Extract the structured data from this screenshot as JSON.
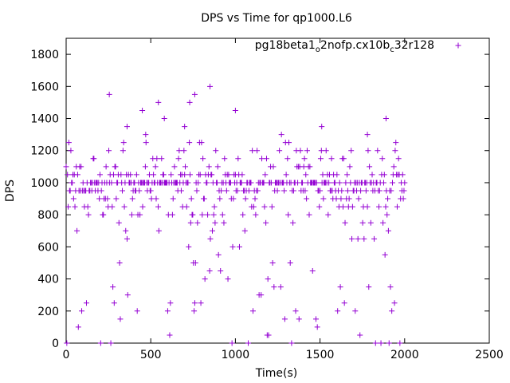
{
  "chart_data": {
    "type": "scatter",
    "title": "DPS vs Time for qp1000.L6",
    "xlabel": "Time(s)",
    "ylabel": "DPS",
    "xlim": [
      0,
      2500
    ],
    "ylim": [
      0,
      1900
    ],
    "xticks": [
      0,
      500,
      1000,
      1500,
      2000,
      2500
    ],
    "yticks": [
      0,
      200,
      400,
      600,
      800,
      1000,
      1200,
      1400,
      1600,
      1800
    ],
    "grid": false,
    "legend_position": "top-right",
    "legend_label_parts": [
      "pg18beta1",
      "o",
      "2nofp.cx10b",
      "c",
      "32r128"
    ],
    "marker": "plus",
    "color": "#9400d3",
    "series": [
      {
        "name": "pg18beta1_o2nofp.cx10b_c32r128",
        "generator": {
          "seed": 1000,
          "x_start": 0,
          "x_end": 2000,
          "x_step": 4,
          "levels": [
            {
              "y": 1000,
              "weight": 0.32
            },
            {
              "y": 950,
              "weight": 0.15
            },
            {
              "y": 1050,
              "weight": 0.1
            },
            {
              "y": 900,
              "weight": 0.07
            },
            {
              "y": 1100,
              "weight": 0.06
            },
            {
              "y": 850,
              "weight": 0.05
            },
            {
              "y": 1150,
              "weight": 0.04
            },
            {
              "y": 800,
              "weight": 0.04
            },
            {
              "y": 1200,
              "weight": 0.03
            },
            {
              "y": 750,
              "weight": 0.02
            },
            {
              "y": 1250,
              "weight": 0.02
            },
            {
              "y": 700,
              "weight": 0.015
            },
            {
              "y": 650,
              "weight": 0.015
            },
            {
              "y": 600,
              "weight": 0.01
            },
            {
              "y": 550,
              "weight": 0.01
            },
            {
              "y": 500,
              "weight": 0.01
            },
            {
              "y": 450,
              "weight": 0.01
            },
            {
              "y": 400,
              "weight": 0.01
            },
            {
              "y": 350,
              "weight": 0.008
            },
            {
              "y": 300,
              "weight": 0.008
            },
            {
              "y": 250,
              "weight": 0.008
            },
            {
              "y": 200,
              "weight": 0.008
            },
            {
              "y": 150,
              "weight": 0.008
            },
            {
              "y": 100,
              "weight": 0.006
            },
            {
              "y": 50,
              "weight": 0.006
            },
            {
              "y": 0,
              "weight": 0.012
            },
            {
              "y": 1300,
              "weight": 0.006
            },
            {
              "y": 1350,
              "weight": 0.004
            }
          ]
        },
        "outliers": [
          {
            "x": 255,
            "y": 1550
          },
          {
            "x": 545,
            "y": 1500
          },
          {
            "x": 580,
            "y": 1400
          },
          {
            "x": 760,
            "y": 1550
          },
          {
            "x": 730,
            "y": 1500
          },
          {
            "x": 850,
            "y": 1600
          },
          {
            "x": 450,
            "y": 1450
          },
          {
            "x": 1000,
            "y": 1450
          },
          {
            "x": 1890,
            "y": 1400
          },
          {
            "x": 360,
            "y": 1350
          },
          {
            "x": 700,
            "y": 1350
          },
          {
            "x": 1510,
            "y": 1350
          },
          {
            "x": 470,
            "y": 1300
          },
          {
            "x": 1780,
            "y": 1300
          }
        ]
      }
    ]
  }
}
